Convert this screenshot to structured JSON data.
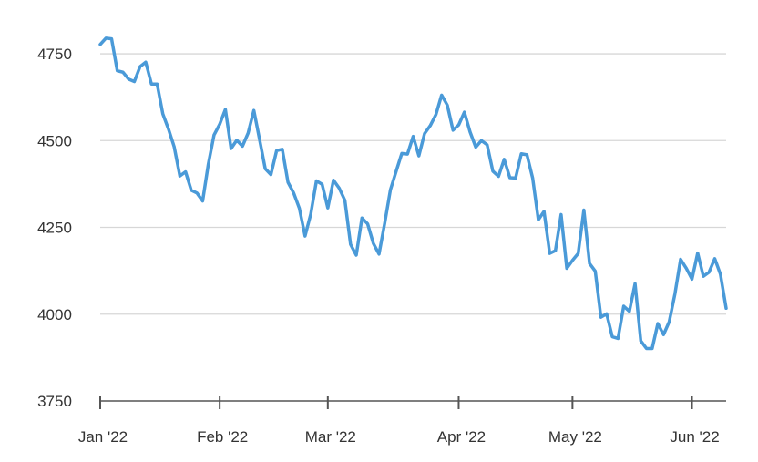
{
  "chart_data": {
    "type": "line",
    "title": "",
    "xlabel": "",
    "ylabel": "",
    "ylim": [
      3750,
      4800
    ],
    "yticks": [
      3750,
      4000,
      4250,
      4500,
      4750
    ],
    "xticks": [
      {
        "label": "Jan '22",
        "x": 0
      },
      {
        "label": "Feb '22",
        "x": 21
      },
      {
        "label": "Mar '22",
        "x": 40
      },
      {
        "label": "Apr '22",
        "x": 63
      },
      {
        "label": "May '22",
        "x": 83
      },
      {
        "label": "Jun '22",
        "x": 104
      }
    ],
    "grid": "horizontal",
    "colors": {
      "line": "#4a9ad8",
      "grid": "#d7d7d7",
      "axis": "#555555"
    },
    "series": [
      {
        "values": [
          4777,
          4795,
          4793,
          4701,
          4697,
          4677,
          4670,
          4713,
          4726,
          4663,
          4663,
          4577,
          4533,
          4482,
          4398,
          4410,
          4357,
          4349,
          4326,
          4432,
          4516,
          4547,
          4590,
          4477,
          4501,
          4484,
          4522,
          4587,
          4504,
          4419,
          4402,
          4471,
          4475,
          4380,
          4349,
          4305,
          4225,
          4288,
          4384,
          4374,
          4306,
          4386,
          4363,
          4328,
          4201,
          4170,
          4277,
          4260,
          4204,
          4173,
          4262,
          4358,
          4411,
          4463,
          4461,
          4512,
          4456,
          4520,
          4543,
          4575,
          4631,
          4602,
          4530,
          4545,
          4582,
          4525,
          4481,
          4500,
          4488,
          4412,
          4397,
          4446,
          4393,
          4392,
          4462,
          4459,
          4392,
          4272,
          4296,
          4175,
          4183,
          4287,
          4132,
          4155,
          4175,
          4300,
          4146,
          4124,
          3991,
          4001,
          3935,
          3930,
          4023,
          4008,
          4088,
          3923,
          3901,
          3901,
          3973,
          3941,
          3978,
          4058,
          4158,
          4132,
          4101,
          4176,
          4109,
          4121,
          4160,
          4115,
          4017
        ]
      }
    ]
  }
}
